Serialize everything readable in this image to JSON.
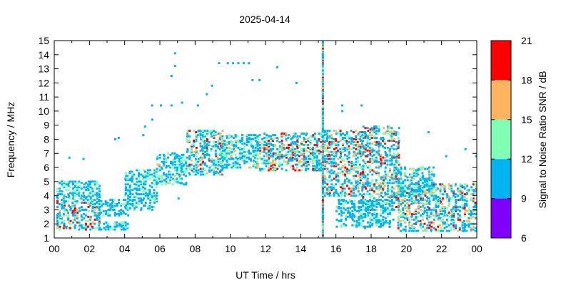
{
  "chart_data": {
    "type": "scatter",
    "title": "2025-04-14",
    "xlabel": "UT Time / hrs",
    "ylabel": "Frequency / MHz",
    "xlim": [
      0,
      24
    ],
    "ylim": [
      1,
      15
    ],
    "x_ticks": [
      "00",
      "02",
      "04",
      "06",
      "08",
      "10",
      "12",
      "14",
      "16",
      "18",
      "20",
      "22",
      "00"
    ],
    "y_ticks": [
      "1",
      "2",
      "3",
      "4",
      "5",
      "6",
      "7",
      "8",
      "9",
      "10",
      "11",
      "12",
      "13",
      "14",
      "15"
    ],
    "grid": false,
    "colorbar": {
      "label": "Signal to Noise Ratio SNR / dB",
      "ticks": [
        "6",
        "9",
        "12",
        "15",
        "18",
        "21"
      ],
      "bands": [
        {
          "from": 6,
          "to": 9,
          "color": "#8000ff"
        },
        {
          "from": 9,
          "to": 12,
          "color": "#00b4ef"
        },
        {
          "from": 12,
          "to": 15,
          "color": "#80ffb4"
        },
        {
          "from": 15,
          "to": 18,
          "color": "#ffb460"
        },
        {
          "from": 18,
          "to": 21,
          "color": "#ff0000"
        }
      ]
    },
    "clusters": [
      {
        "t": [
          0,
          2.5
        ],
        "f": [
          1.6,
          3.8
        ],
        "snr": [
          9,
          21
        ]
      },
      {
        "t": [
          0,
          2.5
        ],
        "f": [
          3.8,
          5.0
        ],
        "snr": [
          9,
          14
        ]
      },
      {
        "t": [
          2.5,
          4.2
        ],
        "f": [
          1.6,
          2.2
        ],
        "snr": [
          9,
          14
        ]
      },
      {
        "t": [
          2.5,
          4.2
        ],
        "f": [
          2.6,
          3.8
        ],
        "snr": [
          9,
          13
        ]
      },
      {
        "t": [
          4,
          5.8
        ],
        "f": [
          3.0,
          5.8
        ],
        "snr": [
          9,
          14
        ]
      },
      {
        "t": [
          5.8,
          7.5
        ],
        "f": [
          4.8,
          7.0
        ],
        "snr": [
          9,
          16
        ]
      },
      {
        "t": [
          7.5,
          9.5
        ],
        "f": [
          5.5,
          8.6
        ],
        "snr": [
          9,
          20
        ]
      },
      {
        "t": [
          9.5,
          11.5
        ],
        "f": [
          6.0,
          8.3
        ],
        "snr": [
          9,
          16
        ]
      },
      {
        "t": [
          11.5,
          15.2
        ],
        "f": [
          5.8,
          8.4
        ],
        "snr": [
          9,
          21
        ]
      },
      {
        "t": [
          15.2,
          17.5
        ],
        "f": [
          4.0,
          8.6
        ],
        "snr": [
          9,
          21
        ]
      },
      {
        "t": [
          17.5,
          19.5
        ],
        "f": [
          3.0,
          8.9
        ],
        "snr": [
          9,
          21
        ]
      },
      {
        "t": [
          16,
          19
        ],
        "f": [
          1.8,
          3.8
        ],
        "snr": [
          9,
          14
        ]
      },
      {
        "t": [
          19.5,
          24
        ],
        "f": [
          1.5,
          4.8
        ],
        "snr": [
          9,
          21
        ]
      },
      {
        "t": [
          19.5,
          21.5
        ],
        "f": [
          4.0,
          6.0
        ],
        "snr": [
          9,
          16
        ]
      }
    ],
    "isolated_points": [
      {
        "t": 0.8,
        "f": 6.7,
        "snr": 10
      },
      {
        "t": 1.6,
        "f": 6.6,
        "snr": 10
      },
      {
        "t": 3.4,
        "f": 8.0,
        "snr": 10
      },
      {
        "t": 3.6,
        "f": 8.1,
        "snr": 10
      },
      {
        "t": 5.0,
        "f": 8.3,
        "snr": 10
      },
      {
        "t": 5.1,
        "f": 8.9,
        "snr": 10
      },
      {
        "t": 5.5,
        "f": 9.4,
        "snr": 10
      },
      {
        "t": 5.5,
        "f": 10.4,
        "snr": 10
      },
      {
        "t": 6.0,
        "f": 10.4,
        "snr": 10
      },
      {
        "t": 6.6,
        "f": 10.4,
        "snr": 10
      },
      {
        "t": 6.6,
        "f": 12.5,
        "snr": 10
      },
      {
        "t": 6.8,
        "f": 13.2,
        "snr": 10
      },
      {
        "t": 6.8,
        "f": 14.1,
        "snr": 10
      },
      {
        "t": 7.2,
        "f": 10.6,
        "snr": 10
      },
      {
        "t": 7.0,
        "f": 3.8,
        "snr": 10
      },
      {
        "t": 8.1,
        "f": 10.4,
        "snr": 10
      },
      {
        "t": 8.6,
        "f": 11.2,
        "snr": 10
      },
      {
        "t": 8.9,
        "f": 11.8,
        "snr": 10
      },
      {
        "t": 9.3,
        "f": 13.4,
        "snr": 10
      },
      {
        "t": 9.8,
        "f": 13.4,
        "snr": 10
      },
      {
        "t": 10.1,
        "f": 13.4,
        "snr": 10
      },
      {
        "t": 10.4,
        "f": 13.4,
        "snr": 10
      },
      {
        "t": 10.7,
        "f": 13.4,
        "snr": 10
      },
      {
        "t": 11.0,
        "f": 13.4,
        "snr": 10
      },
      {
        "t": 11.2,
        "f": 12.2,
        "snr": 10
      },
      {
        "t": 11.6,
        "f": 12.2,
        "snr": 10
      },
      {
        "t": 12.6,
        "f": 13.1,
        "snr": 10
      },
      {
        "t": 13.7,
        "f": 12.0,
        "snr": 10
      },
      {
        "t": 16.3,
        "f": 10.4,
        "snr": 10
      },
      {
        "t": 16.3,
        "f": 10.0,
        "snr": 10
      },
      {
        "t": 17.4,
        "f": 10.4,
        "snr": 10
      },
      {
        "t": 21.2,
        "f": 8.5,
        "snr": 10
      },
      {
        "t": 22.2,
        "f": 6.8,
        "snr": 10
      },
      {
        "t": 23.3,
        "f": 7.3,
        "snr": 10
      },
      {
        "t": 23.9,
        "f": 6.8,
        "snr": 10
      },
      {
        "t": 16.6,
        "f": 3.1,
        "snr": 10
      },
      {
        "t": 17.6,
        "f": 1.7,
        "snr": 10
      },
      {
        "t": 19.0,
        "f": 1.8,
        "snr": 10
      },
      {
        "t": 19.0,
        "f": 2.8,
        "snr": 10
      },
      {
        "t": 19.2,
        "f": 2.3,
        "snr": 10
      }
    ],
    "vertical_burst": {
      "t": 15.2,
      "f": [
        1.0,
        15.0
      ],
      "snr": [
        9,
        21
      ]
    }
  }
}
